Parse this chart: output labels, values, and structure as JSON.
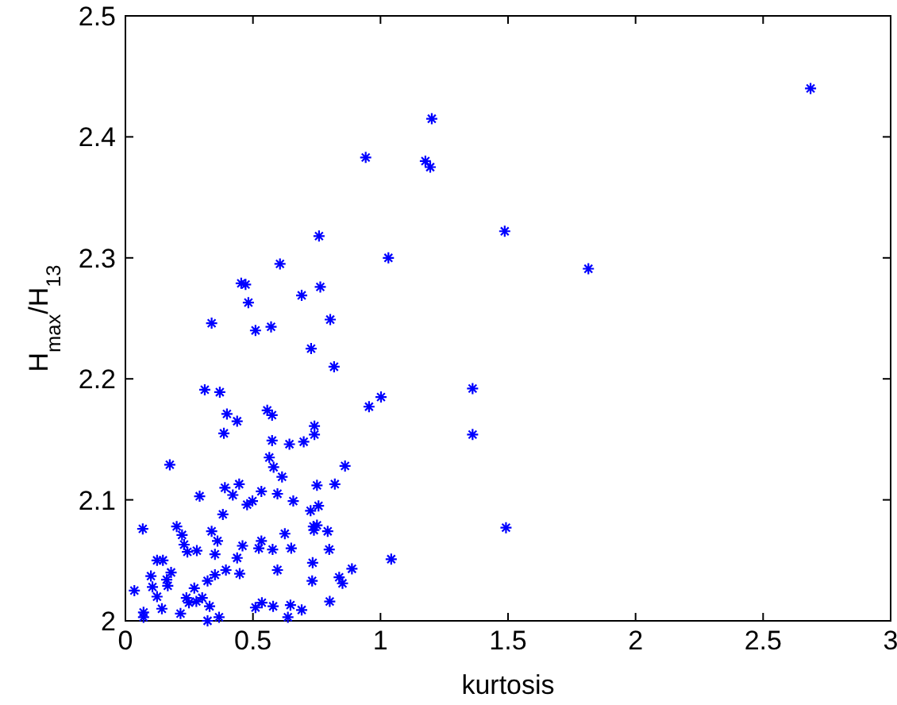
{
  "chart_data": {
    "type": "scatter",
    "xlabel": "kurtosis",
    "ylabel": "H$_{max}$/H$_{13}$",
    "xlim": [
      0,
      3
    ],
    "ylim": [
      2,
      2.5
    ],
    "xticks": [
      0,
      0.5,
      1,
      1.5,
      2,
      2.5,
      3
    ],
    "yticks": [
      2,
      2.1,
      2.2,
      2.3,
      2.4,
      2.5
    ],
    "grid": false,
    "marker": "cross",
    "series": [
      {
        "color": "#0000ff",
        "x": [
          2.686,
          1.201,
          0.942,
          1.176,
          1.195,
          0.759,
          1.487,
          1.031,
          1.815,
          0.764,
          0.803,
          0.818,
          1.361,
          1.002,
          0.955,
          1.361,
          0.861,
          0.751,
          0.821,
          0.757,
          0.751,
          1.492,
          0.793,
          0.799,
          1.042,
          0.888,
          0.838,
          0.851,
          0.801,
          0.606,
          0.454,
          0.471,
          0.691,
          0.482,
          0.338,
          0.51,
          0.571,
          0.728,
          0.311,
          0.37,
          0.398,
          0.438,
          0.386,
          0.556,
          0.575,
          0.741,
          0.741,
          0.575,
          0.643,
          0.699,
          0.564,
          0.174,
          0.581,
          0.614,
          0.39,
          0.446,
          0.421,
          0.533,
          0.596,
          0.291,
          0.658,
          0.498,
          0.477,
          0.726,
          0.382,
          0.068,
          0.201,
          0.222,
          0.338,
          0.361,
          0.23,
          0.243,
          0.28,
          0.625,
          0.737,
          0.739,
          0.533,
          0.459,
          0.523,
          0.577,
          0.65,
          0.351,
          0.438,
          0.124,
          0.147,
          0.734,
          0.596,
          0.394,
          0.448,
          0.179,
          0.1,
          0.351,
          0.322,
          0.162,
          0.732,
          0.166,
          0.106,
          0.27,
          0.035,
          0.124,
          0.239,
          0.301,
          0.249,
          0.278,
          0.33,
          0.143,
          0.071,
          0.216,
          0.071,
          0.367,
          0.322,
          0.51,
          0.535,
          0.579,
          0.647,
          0.691,
          0.637
        ],
        "values": [
          2.44,
          2.415,
          2.383,
          2.38,
          2.375,
          2.318,
          2.322,
          2.3,
          2.291,
          2.276,
          2.249,
          2.21,
          2.192,
          2.185,
          2.177,
          2.154,
          2.128,
          2.112,
          2.113,
          2.095,
          2.079,
          2.077,
          2.074,
          2.059,
          2.051,
          2.043,
          2.036,
          2.031,
          2.016,
          2.295,
          2.279,
          2.278,
          2.269,
          2.263,
          2.246,
          2.24,
          2.243,
          2.225,
          2.191,
          2.189,
          2.171,
          2.165,
          2.155,
          2.174,
          2.17,
          2.161,
          2.154,
          2.149,
          2.146,
          2.148,
          2.135,
          2.129,
          2.127,
          2.119,
          2.11,
          2.113,
          2.104,
          2.107,
          2.105,
          2.103,
          2.099,
          2.099,
          2.096,
          2.091,
          2.088,
          2.076,
          2.078,
          2.071,
          2.074,
          2.066,
          2.063,
          2.057,
          2.058,
          2.072,
          2.078,
          2.075,
          2.066,
          2.062,
          2.06,
          2.059,
          2.06,
          2.055,
          2.052,
          2.05,
          2.05,
          2.048,
          2.042,
          2.042,
          2.039,
          2.04,
          2.037,
          2.038,
          2.033,
          2.034,
          2.033,
          2.029,
          2.028,
          2.027,
          2.025,
          2.02,
          2.019,
          2.019,
          2.015,
          2.016,
          2.012,
          2.01,
          2.007,
          2.006,
          2.003,
          2.003,
          2.0,
          2.011,
          2.015,
          2.012,
          2.013,
          2.009,
          2.003
        ]
      }
    ]
  }
}
